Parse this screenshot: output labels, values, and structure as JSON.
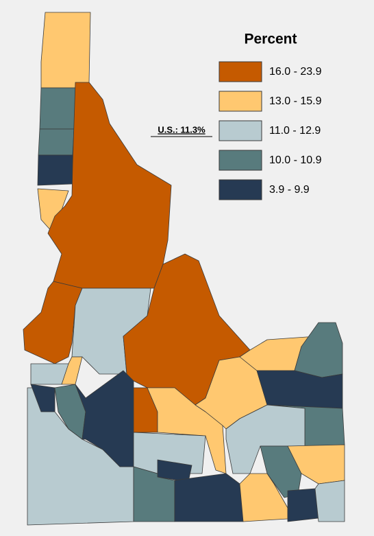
{
  "legend": {
    "title": "Percent",
    "items": [
      {
        "label": "16.0 - 23.9",
        "color": "#c55a00"
      },
      {
        "label": "13.0 - 15.9",
        "color": "#ffc870"
      },
      {
        "label": "11.0 - 12.9",
        "color": "#b8cbd0"
      },
      {
        "label": "10.0 - 10.9",
        "color": "#587b7d"
      },
      {
        "label": "3.9 - 9.9",
        "color": "#263a53"
      }
    ]
  },
  "us_note": "U.S.: 11.3%"
}
